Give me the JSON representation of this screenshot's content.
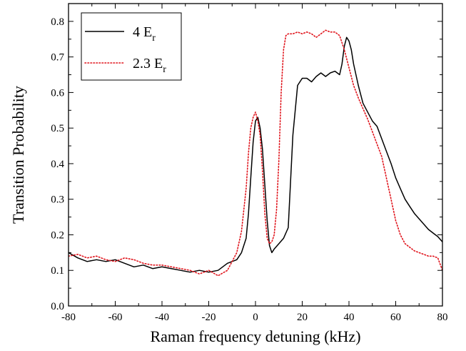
{
  "chart_data": {
    "type": "line",
    "title": "",
    "xlabel": "Raman frequency detuning (kHz)",
    "ylabel": "Transition Probability",
    "xlim": [
      -80,
      80
    ],
    "ylim": [
      0.0,
      0.85
    ],
    "xticks": [
      -80,
      -60,
      -40,
      -20,
      0,
      20,
      40,
      60,
      80
    ],
    "xtick_labels": [
      "-80",
      "-60",
      "-40",
      "-20",
      "0",
      "20",
      "40",
      "60",
      "80"
    ],
    "yticks": [
      0.0,
      0.1,
      0.2,
      0.3,
      0.4,
      0.5,
      0.6,
      0.7,
      0.8
    ],
    "ytick_labels": [
      "0.0",
      "0.1",
      "0.2",
      "0.3",
      "0.4",
      "0.5",
      "0.6",
      "0.7",
      "0.8"
    ],
    "grid": false,
    "legend_position": "top-left",
    "series": [
      {
        "name": "4 E",
        "name_subscript": "r",
        "color": "#000000",
        "style": "solid",
        "x": [
          -80,
          -76,
          -72,
          -68,
          -64,
          -60,
          -56,
          -52,
          -48,
          -44,
          -40,
          -36,
          -32,
          -28,
          -24,
          -20,
          -16,
          -12,
          -8,
          -6,
          -4,
          -3,
          -2,
          -1,
          0,
          1,
          2,
          3,
          4,
          5,
          6,
          7,
          8,
          10,
          12,
          14,
          16,
          18,
          20,
          22,
          24,
          26,
          28,
          30,
          32,
          34,
          36,
          37,
          38,
          39,
          40,
          41,
          42,
          44,
          46,
          48,
          50,
          52,
          54,
          56,
          58,
          60,
          62,
          64,
          66,
          68,
          70,
          72,
          74,
          76,
          78,
          80
        ],
        "y": [
          0.15,
          0.135,
          0.125,
          0.13,
          0.125,
          0.13,
          0.12,
          0.11,
          0.115,
          0.105,
          0.11,
          0.105,
          0.1,
          0.095,
          0.1,
          0.095,
          0.1,
          0.12,
          0.13,
          0.15,
          0.19,
          0.26,
          0.36,
          0.46,
          0.52,
          0.53,
          0.5,
          0.44,
          0.34,
          0.24,
          0.17,
          0.15,
          0.16,
          0.175,
          0.19,
          0.22,
          0.48,
          0.62,
          0.64,
          0.64,
          0.63,
          0.645,
          0.655,
          0.645,
          0.655,
          0.66,
          0.65,
          0.68,
          0.73,
          0.755,
          0.745,
          0.72,
          0.68,
          0.62,
          0.57,
          0.545,
          0.52,
          0.505,
          0.47,
          0.435,
          0.4,
          0.36,
          0.33,
          0.3,
          0.28,
          0.26,
          0.245,
          0.23,
          0.215,
          0.205,
          0.195,
          0.18
        ]
      },
      {
        "name": "2.3 E",
        "name_subscript": "r",
        "color": "#e0141c",
        "style": "dotted",
        "x": [
          -80,
          -76,
          -72,
          -68,
          -64,
          -60,
          -56,
          -52,
          -48,
          -44,
          -40,
          -36,
          -32,
          -28,
          -24,
          -20,
          -16,
          -12,
          -8,
          -6,
          -4,
          -3,
          -2,
          -1,
          0,
          1,
          2,
          3,
          4,
          5,
          6,
          7,
          8,
          9,
          10,
          11,
          12,
          13,
          14,
          16,
          18,
          20,
          22,
          24,
          26,
          28,
          30,
          32,
          34,
          36,
          38,
          40,
          42,
          44,
          46,
          48,
          50,
          52,
          54,
          56,
          58,
          60,
          62,
          64,
          66,
          68,
          70,
          72,
          74,
          76,
          78,
          80
        ],
        "y": [
          0.14,
          0.145,
          0.135,
          0.14,
          0.13,
          0.125,
          0.135,
          0.13,
          0.12,
          0.115,
          0.115,
          0.11,
          0.105,
          0.1,
          0.09,
          0.1,
          0.085,
          0.1,
          0.15,
          0.21,
          0.33,
          0.43,
          0.5,
          0.53,
          0.545,
          0.52,
          0.48,
          0.38,
          0.26,
          0.19,
          0.175,
          0.18,
          0.2,
          0.27,
          0.41,
          0.6,
          0.72,
          0.76,
          0.765,
          0.765,
          0.77,
          0.765,
          0.77,
          0.765,
          0.755,
          0.765,
          0.775,
          0.77,
          0.77,
          0.76,
          0.72,
          0.67,
          0.62,
          0.585,
          0.555,
          0.525,
          0.49,
          0.455,
          0.42,
          0.36,
          0.3,
          0.24,
          0.2,
          0.175,
          0.165,
          0.155,
          0.15,
          0.145,
          0.14,
          0.14,
          0.135,
          0.1
        ]
      }
    ]
  }
}
